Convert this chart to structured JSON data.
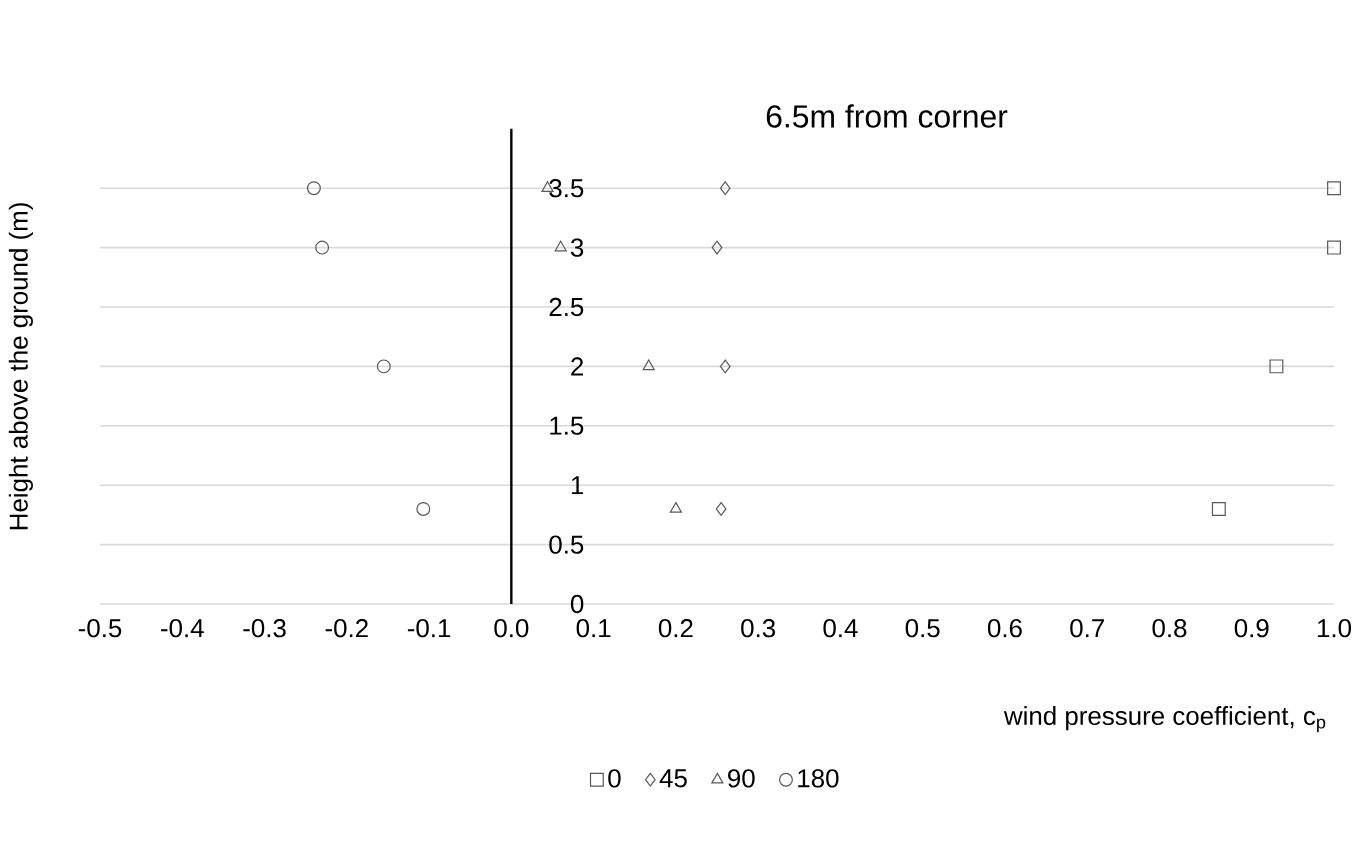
{
  "chart_data": {
    "type": "scatter",
    "title": "6.5m from corner",
    "xlabel": "wind pressure coefficient, c$_{p}$",
    "ylabel": "Height above the ground (m)",
    "xlim": [
      -0.5,
      1.0
    ],
    "xticks": [
      {
        "value": -0.5,
        "label": "-0.5"
      },
      {
        "value": -0.4,
        "label": "-0.4"
      },
      {
        "value": -0.3,
        "label": "-0.3"
      },
      {
        "value": -0.2,
        "label": "-0.2"
      },
      {
        "value": -0.1,
        "label": "-0.1"
      },
      {
        "value": 0.0,
        "label": "0.0"
      },
      {
        "value": 0.1,
        "label": "0.1"
      },
      {
        "value": 0.2,
        "label": "0.2"
      },
      {
        "value": 0.3,
        "label": "0.3"
      },
      {
        "value": 0.4,
        "label": "0.4"
      },
      {
        "value": 0.5,
        "label": "0.5"
      },
      {
        "value": 0.6,
        "label": "0.6"
      },
      {
        "value": 0.7,
        "label": "0.7"
      },
      {
        "value": 0.8,
        "label": "0.8"
      },
      {
        "value": 0.9,
        "label": "0.9"
      },
      {
        "value": 1.0,
        "label": "1.0"
      }
    ],
    "ylim": [
      0,
      4
    ],
    "yticks": [
      0,
      0.5,
      1,
      1.5,
      2,
      2.5,
      3,
      3.5
    ],
    "grid": "y",
    "legend": "bottom",
    "series": [
      {
        "name": "0",
        "color": "#595959",
        "marker": "square",
        "x": [
          0.86,
          0.93,
          1.0,
          1.0
        ],
        "values": [
          0.8,
          2,
          3,
          3.5
        ]
      },
      {
        "name": "45",
        "color": "#595959",
        "marker": "diamond",
        "x": [
          0.255,
          0.26,
          0.25,
          0.26
        ],
        "values": [
          0.8,
          2,
          3,
          3.5
        ]
      },
      {
        "name": "90",
        "color": "#595959",
        "marker": "triangle",
        "x": [
          0.2,
          0.167,
          0.06,
          0.044
        ],
        "values": [
          0.8,
          2,
          3,
          3.5
        ]
      },
      {
        "name": "180",
        "color": "#595959",
        "marker": "circle",
        "x": [
          -0.107,
          -0.155,
          -0.23,
          -0.24
        ],
        "values": [
          0.8,
          2,
          3,
          3.5
        ]
      }
    ]
  }
}
